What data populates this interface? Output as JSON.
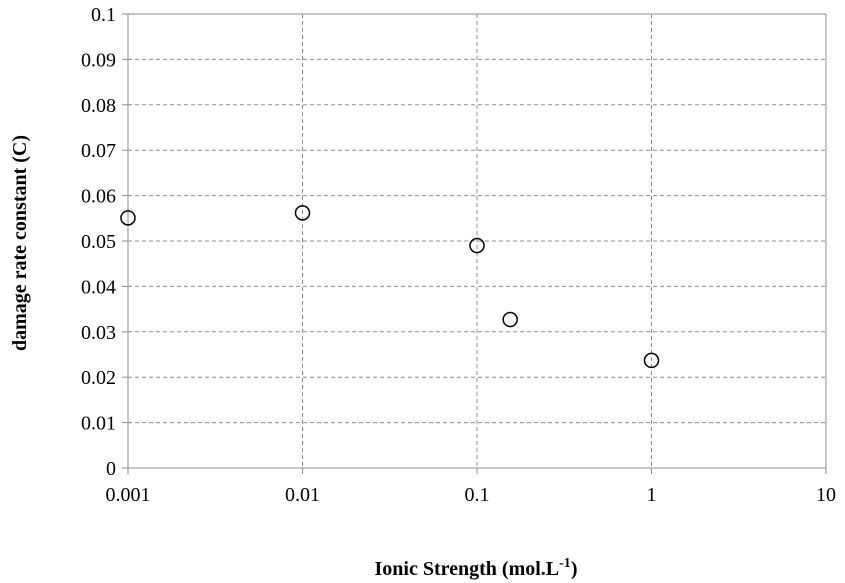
{
  "chart_data": {
    "type": "scatter",
    "title": "",
    "xlabel": "Ionic Strength (mol.L",
    "xlabel_sup": "-1",
    "xlabel_suffix": ")",
    "ylabel": "damage rate constant (C)",
    "x_scale": "log",
    "xlim": [
      0.001,
      10
    ],
    "ylim": [
      0,
      0.1
    ],
    "x_ticks": [
      0.001,
      0.01,
      0.1,
      1,
      10
    ],
    "x_tick_labels": [
      "0.001",
      "0.01",
      "0.1",
      "1",
      "10"
    ],
    "y_ticks": [
      0,
      0.01,
      0.02,
      0.03,
      0.04,
      0.05,
      0.06,
      0.07,
      0.08,
      0.09,
      0.1
    ],
    "y_tick_labels": [
      "0",
      "0.01",
      "0.02",
      "0.03",
      "0.04",
      "0.05",
      "0.06",
      "0.07",
      "0.08",
      "0.09",
      "0.1"
    ],
    "grid": true,
    "marker": "open-circle",
    "marker_color": "#000000",
    "grid_color": "#8c8c8c",
    "series": [
      {
        "points": [
          {
            "x": 0.001,
            "y": 0.0551
          },
          {
            "x": 0.01,
            "y": 0.0562
          },
          {
            "x": 0.1,
            "y": 0.049
          },
          {
            "x": 0.155,
            "y": 0.0327
          },
          {
            "x": 1,
            "y": 0.0237
          }
        ]
      }
    ]
  }
}
